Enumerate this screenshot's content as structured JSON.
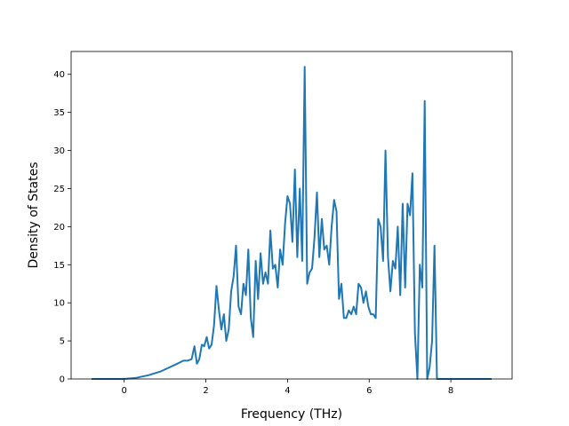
{
  "chart_data": {
    "type": "line",
    "title": "",
    "xlabel": "Frequency (THz)",
    "ylabel": "Density of States",
    "xlim": [
      -1.3,
      9.5
    ],
    "ylim": [
      0,
      43
    ],
    "grid": false,
    "line_color": "#1f77b4",
    "xticks": [
      0,
      2,
      4,
      6,
      8
    ],
    "yticks": [
      0,
      5,
      10,
      15,
      20,
      25,
      30,
      35,
      40
    ],
    "series": [
      {
        "x": [
          -0.8,
          -0.4,
          0.0,
          0.3,
          0.6,
          0.9,
          1.1,
          1.3,
          1.45,
          1.55,
          1.65,
          1.72,
          1.78,
          1.84,
          1.9,
          1.96,
          2.02,
          2.08,
          2.14,
          2.2,
          2.26,
          2.32,
          2.38,
          2.44,
          2.5,
          2.56,
          2.62,
          2.68,
          2.74,
          2.8,
          2.86,
          2.92,
          2.98,
          3.04,
          3.1,
          3.16,
          3.22,
          3.28,
          3.34,
          3.4,
          3.46,
          3.52,
          3.58,
          3.64,
          3.7,
          3.76,
          3.82,
          3.88,
          3.94,
          4.0,
          4.06,
          4.12,
          4.18,
          4.24,
          4.3,
          4.36,
          4.42,
          4.48,
          4.54,
          4.6,
          4.66,
          4.72,
          4.78,
          4.84,
          4.9,
          4.96,
          5.02,
          5.08,
          5.14,
          5.2,
          5.26,
          5.32,
          5.38,
          5.44,
          5.5,
          5.56,
          5.62,
          5.68,
          5.74,
          5.8,
          5.86,
          5.92,
          5.98,
          6.04,
          6.1,
          6.16,
          6.22,
          6.28,
          6.34,
          6.4,
          6.46,
          6.52,
          6.58,
          6.64,
          6.7,
          6.76,
          6.82,
          6.88,
          6.94,
          7.0,
          7.06,
          7.12,
          7.18,
          7.24,
          7.3,
          7.36,
          7.42,
          7.48,
          7.54,
          7.6,
          7.66,
          7.72,
          7.78,
          7.84,
          7.9,
          7.96,
          8.02,
          8.08,
          8.14,
          8.2,
          8.5,
          9.0
        ],
        "values": [
          0,
          0,
          0,
          0.15,
          0.5,
          1.0,
          1.5,
          2.0,
          2.4,
          2.4,
          2.6,
          4.3,
          2.0,
          2.6,
          4.5,
          4.3,
          5.5,
          4.0,
          4.5,
          7.0,
          12.2,
          9.0,
          6.5,
          8.5,
          5.0,
          6.5,
          11.5,
          13.5,
          17.5,
          9.5,
          8.5,
          12.5,
          11.0,
          17.0,
          8.0,
          5.5,
          15.5,
          10.5,
          16.5,
          12.5,
          14.0,
          12.5,
          19.5,
          14.5,
          15.0,
          12.0,
          17.0,
          15.0,
          20.5,
          24.0,
          23.0,
          18.0,
          27.5,
          16.0,
          25.0,
          15.5,
          41.0,
          12.5,
          14.0,
          14.5,
          18.5,
          24.5,
          16.0,
          21.0,
          17.0,
          17.5,
          15.0,
          20.0,
          23.5,
          22.0,
          10.5,
          12.5,
          8.0,
          8.0,
          9.0,
          8.5,
          9.5,
          8.5,
          12.5,
          12.0,
          10.0,
          11.5,
          9.5,
          8.5,
          8.5,
          8.0,
          21.0,
          20.0,
          15.5,
          30.0,
          16.0,
          11.5,
          15.5,
          14.5,
          20.0,
          11.0,
          23.0,
          12.0,
          23.0,
          21.5,
          27.0,
          6.0,
          0,
          15.0,
          12.0,
          36.5,
          0,
          1.5,
          5.0,
          17.5,
          0,
          0,
          0,
          0,
          0,
          0,
          0,
          0,
          0,
          0,
          0,
          0
        ],
        "name": ""
      }
    ]
  }
}
